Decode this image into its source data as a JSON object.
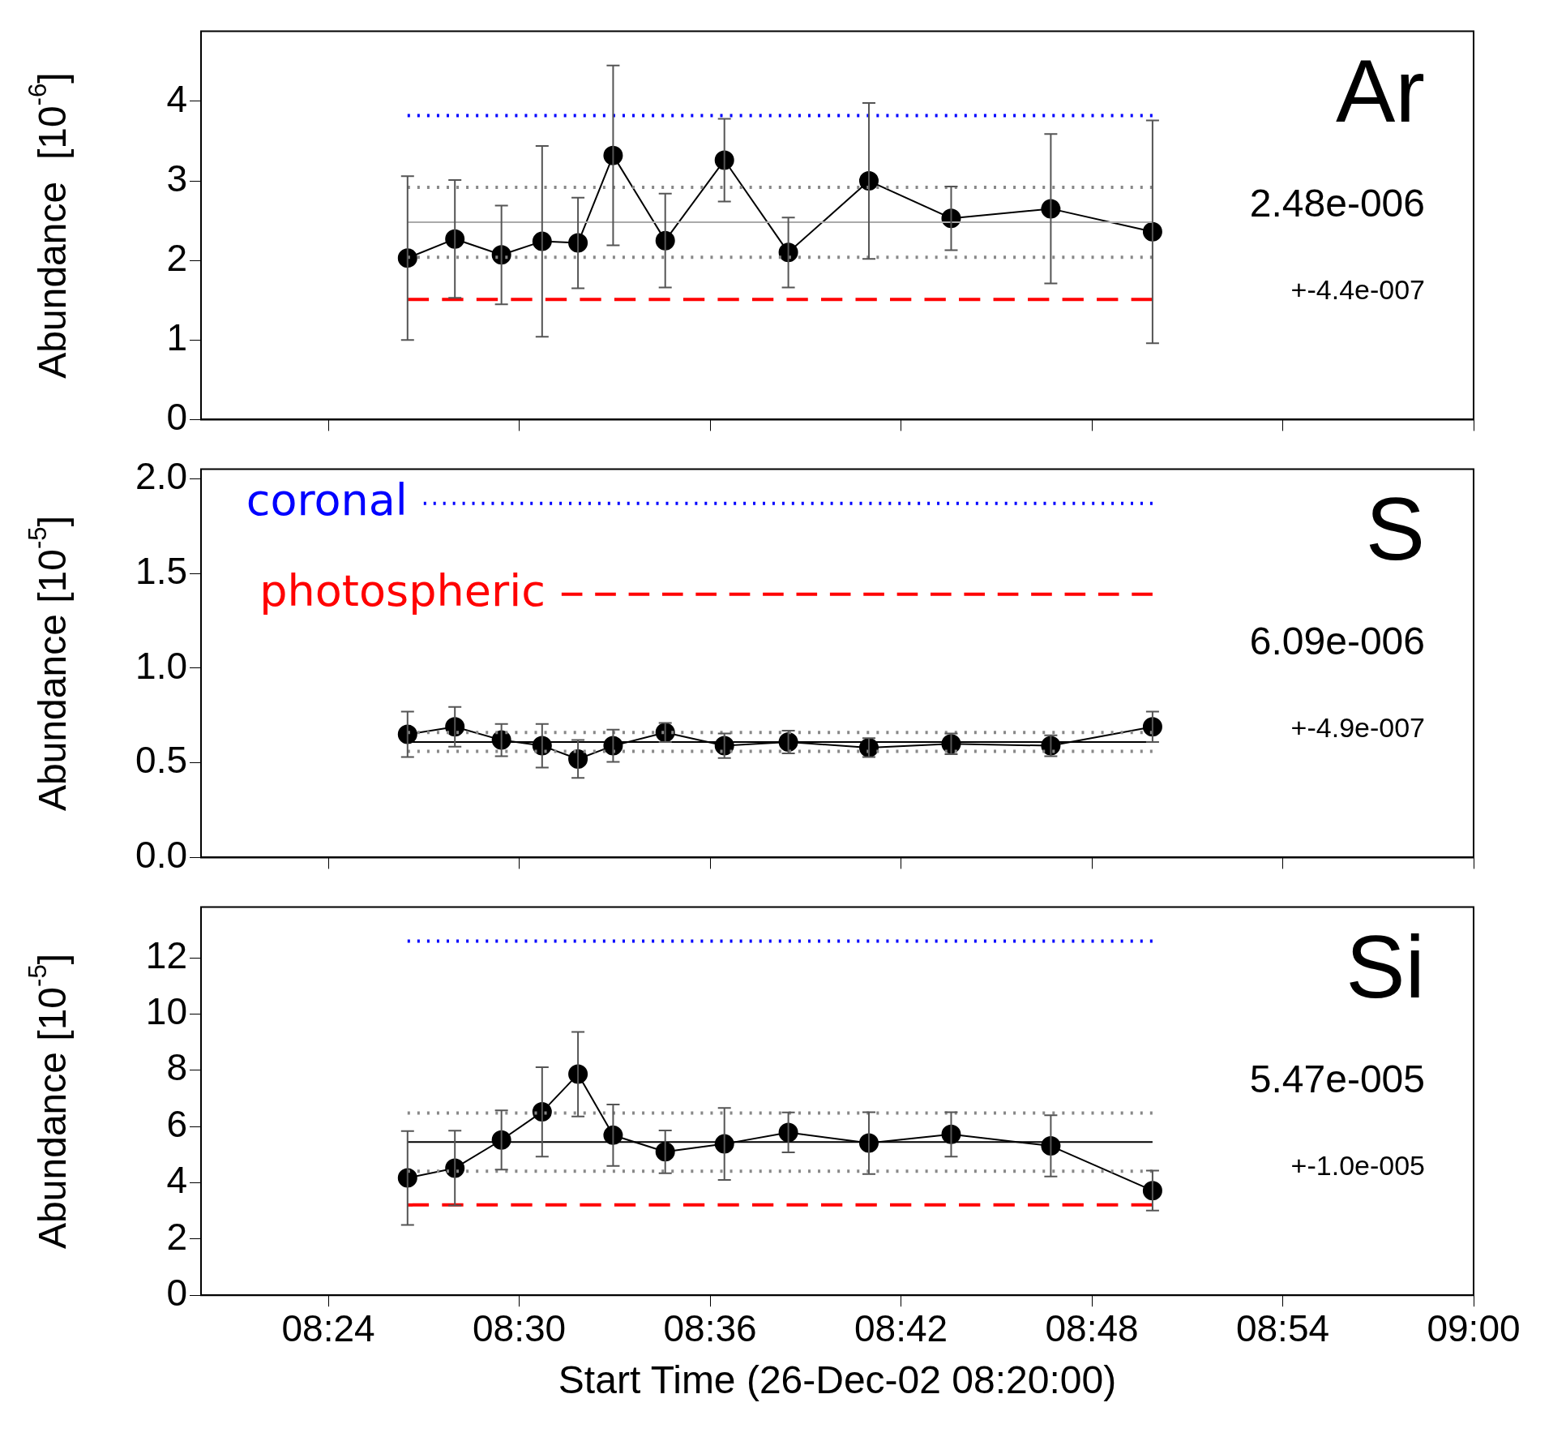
{
  "chart_data": [
    {
      "type": "line",
      "ylabel": "Abundance  [10$^{-6}$]",
      "xlim": [
        8.3333,
        9
      ],
      "xticks": [
        {
          "value": 8.4,
          "label": null
        },
        {
          "value": 8.5,
          "label": null
        },
        {
          "value": 8.6,
          "label": null
        },
        {
          "value": 8.7,
          "label": null
        },
        {
          "value": 8.8,
          "label": null
        },
        {
          "value": 8.9,
          "label": null
        },
        {
          "value": 9,
          "label": null
        }
      ],
      "ylim": [
        0,
        4.88
      ],
      "yticks": [
        0,
        1,
        2,
        3,
        4
      ],
      "tick_labels": "y",
      "annotations": [
        "Ar",
        "2.48e-006",
        "+-4.4e-007"
      ],
      "x": [
        8.4415,
        8.4663,
        8.4907,
        8.512,
        8.5308,
        8.5492,
        8.5765,
        8.6075,
        8.641,
        8.6832,
        8.7263,
        8.7785,
        8.8318
      ],
      "series": [
        {
          "color": "#aaaaaa",
          "x": [
            8.4415,
            8.8318
          ],
          "values": [
            2.48,
            2.48
          ],
          "marker": "none",
          "line_style": "solid"
        },
        {
          "color": "#888888",
          "x": [
            8.4415,
            8.8318
          ],
          "values": [
            2.92,
            2.92
          ],
          "marker": "none",
          "line_style": "dotted"
        },
        {
          "color": "#888888",
          "x": [
            8.4415,
            8.8318
          ],
          "values": [
            2.04,
            2.04
          ],
          "marker": "none",
          "line_style": "dotted"
        },
        {
          "color": "#0000ff",
          "x": [
            8.4415,
            8.8318
          ],
          "values": [
            3.82,
            3.82
          ],
          "marker": "none",
          "line_style": "dotted"
        },
        {
          "color": "#ff0000",
          "x": [
            8.4415,
            8.8318
          ],
          "values": [
            1.51,
            1.51
          ],
          "marker": "none",
          "line_style": "dashed"
        },
        {
          "color": "#000000",
          "marker": "circle",
          "line_style": "solid",
          "values": [
            2.03,
            2.27,
            2.07,
            2.24,
            2.22,
            3.32,
            2.25,
            3.26,
            2.1,
            3.0,
            2.53,
            2.65,
            2.36
          ],
          "errors": [
            1.03,
            0.74,
            0.62,
            1.2,
            0.57,
            1.13,
            0.59,
            0.52,
            0.44,
            0.98,
            0.4,
            0.94,
            1.4
          ]
        }
      ]
    },
    {
      "type": "line",
      "ylabel": "Abundance [10$^{-5}$]",
      "xlim": [
        8.3333,
        9
      ],
      "xticks": [
        {
          "value": 8.4,
          "label": null
        },
        {
          "value": 8.5,
          "label": null
        },
        {
          "value": 8.6,
          "label": null
        },
        {
          "value": 8.7,
          "label": null
        },
        {
          "value": 8.8,
          "label": null
        },
        {
          "value": 8.9,
          "label": null
        },
        {
          "value": 9,
          "label": null
        }
      ],
      "ylim": [
        0,
        2.05
      ],
      "yticks": [
        {
          "value": 0,
          "label": "0.0"
        },
        {
          "value": 0.5,
          "label": "0.5"
        },
        {
          "value": 1,
          "label": "1.0"
        },
        {
          "value": 1.5,
          "label": "1.5"
        },
        {
          "value": 2,
          "label": "2.0"
        }
      ],
      "tick_labels": "y",
      "annotations": [
        "S",
        "6.09e-006",
        "+-4.9e-007"
      ],
      "x": [
        8.4415,
        8.4663,
        8.4907,
        8.512,
        8.5308,
        8.5492,
        8.5765,
        8.6075,
        8.641,
        8.6832,
        8.7263,
        8.7785,
        8.8318
      ],
      "series": [
        {
          "color": "#000000",
          "x": [
            8.4415,
            8.8318
          ],
          "values": [
            0.61,
            0.61
          ],
          "marker": "none",
          "line_style": "solid"
        },
        {
          "color": "#888888",
          "x": [
            8.4415,
            8.8318
          ],
          "values": [
            0.66,
            0.66
          ],
          "marker": "none",
          "line_style": "dotted"
        },
        {
          "color": "#888888",
          "x": [
            8.4415,
            8.8318
          ],
          "values": [
            0.56,
            0.56
          ],
          "marker": "none",
          "line_style": "dotted"
        },
        {
          "name": "coronal",
          "color": "#0000ff",
          "x": [
            8.45,
            8.8318
          ],
          "values": [
            1.87,
            1.87
          ],
          "marker": "none",
          "line_style": "dotted"
        },
        {
          "name": "photospheric",
          "color": "#ff0000",
          "x": [
            8.5222,
            8.8318
          ],
          "values": [
            1.39,
            1.39
          ],
          "marker": "none",
          "line_style": "dashed"
        },
        {
          "color": "#000000",
          "marker": "circle",
          "line_style": "solid",
          "values": [
            0.65,
            0.69,
            0.62,
            0.59,
            0.52,
            0.59,
            0.66,
            0.59,
            0.61,
            0.58,
            0.6,
            0.59,
            0.69
          ],
          "errors": [
            0.12,
            0.105,
            0.085,
            0.115,
            0.1,
            0.085,
            0.05,
            0.065,
            0.06,
            0.05,
            0.055,
            0.055,
            0.08
          ]
        }
      ]
    },
    {
      "type": "line",
      "ylabel": "Abundance [10$^{-5}$]",
      "xlabel": "Start Time (26-Dec-02 08:20:00)",
      "xlim": [
        8.3333,
        9
      ],
      "xticks": [
        {
          "value": 8.4,
          "label": "08:24"
        },
        {
          "value": 8.5,
          "label": "08:30"
        },
        {
          "value": 8.6,
          "label": "08:36"
        },
        {
          "value": 8.7,
          "label": "08:42"
        },
        {
          "value": 8.8,
          "label": "08:48"
        },
        {
          "value": 8.9,
          "label": "08:54"
        },
        {
          "value": 9,
          "label": "09:00"
        }
      ],
      "ylim": [
        0,
        13.8
      ],
      "yticks": [
        0,
        2,
        4,
        6,
        8,
        10,
        12
      ],
      "annotations": [
        "Si",
        "5.47e-005",
        "+-1.0e-005"
      ],
      "x": [
        8.4415,
        8.4663,
        8.4907,
        8.512,
        8.5308,
        8.5492,
        8.5765,
        8.6075,
        8.641,
        8.6832,
        8.7263,
        8.7785,
        8.8318
      ],
      "series": [
        {
          "color": "#000000",
          "x": [
            8.4415,
            8.8318
          ],
          "values": [
            5.45,
            5.45
          ],
          "marker": "none",
          "line_style": "solid"
        },
        {
          "color": "#888888",
          "x": [
            8.4415,
            8.8318
          ],
          "values": [
            6.48,
            6.48
          ],
          "marker": "none",
          "line_style": "dotted"
        },
        {
          "color": "#888888",
          "x": [
            8.4415,
            8.8318
          ],
          "values": [
            4.41,
            4.41
          ],
          "marker": "none",
          "line_style": "dotted"
        },
        {
          "color": "#0000ff",
          "x": [
            8.4415,
            8.8318
          ],
          "values": [
            12.59,
            12.59
          ],
          "marker": "none",
          "line_style": "dotted"
        },
        {
          "color": "#ff0000",
          "x": [
            8.4415,
            8.8318
          ],
          "values": [
            3.21,
            3.21
          ],
          "marker": "none",
          "line_style": "dashed"
        },
        {
          "color": "#000000",
          "marker": "circle",
          "line_style": "solid",
          "values": [
            4.17,
            4.52,
            5.52,
            6.52,
            7.86,
            5.69,
            5.1,
            5.38,
            5.79,
            5.41,
            5.72,
            5.31,
            3.72
          ],
          "errors": [
            1.67,
            1.33,
            1.05,
            1.59,
            1.5,
            1.09,
            0.76,
            1.28,
            0.71,
            1.1,
            0.79,
            1.09,
            0.71
          ]
        }
      ]
    }
  ]
}
